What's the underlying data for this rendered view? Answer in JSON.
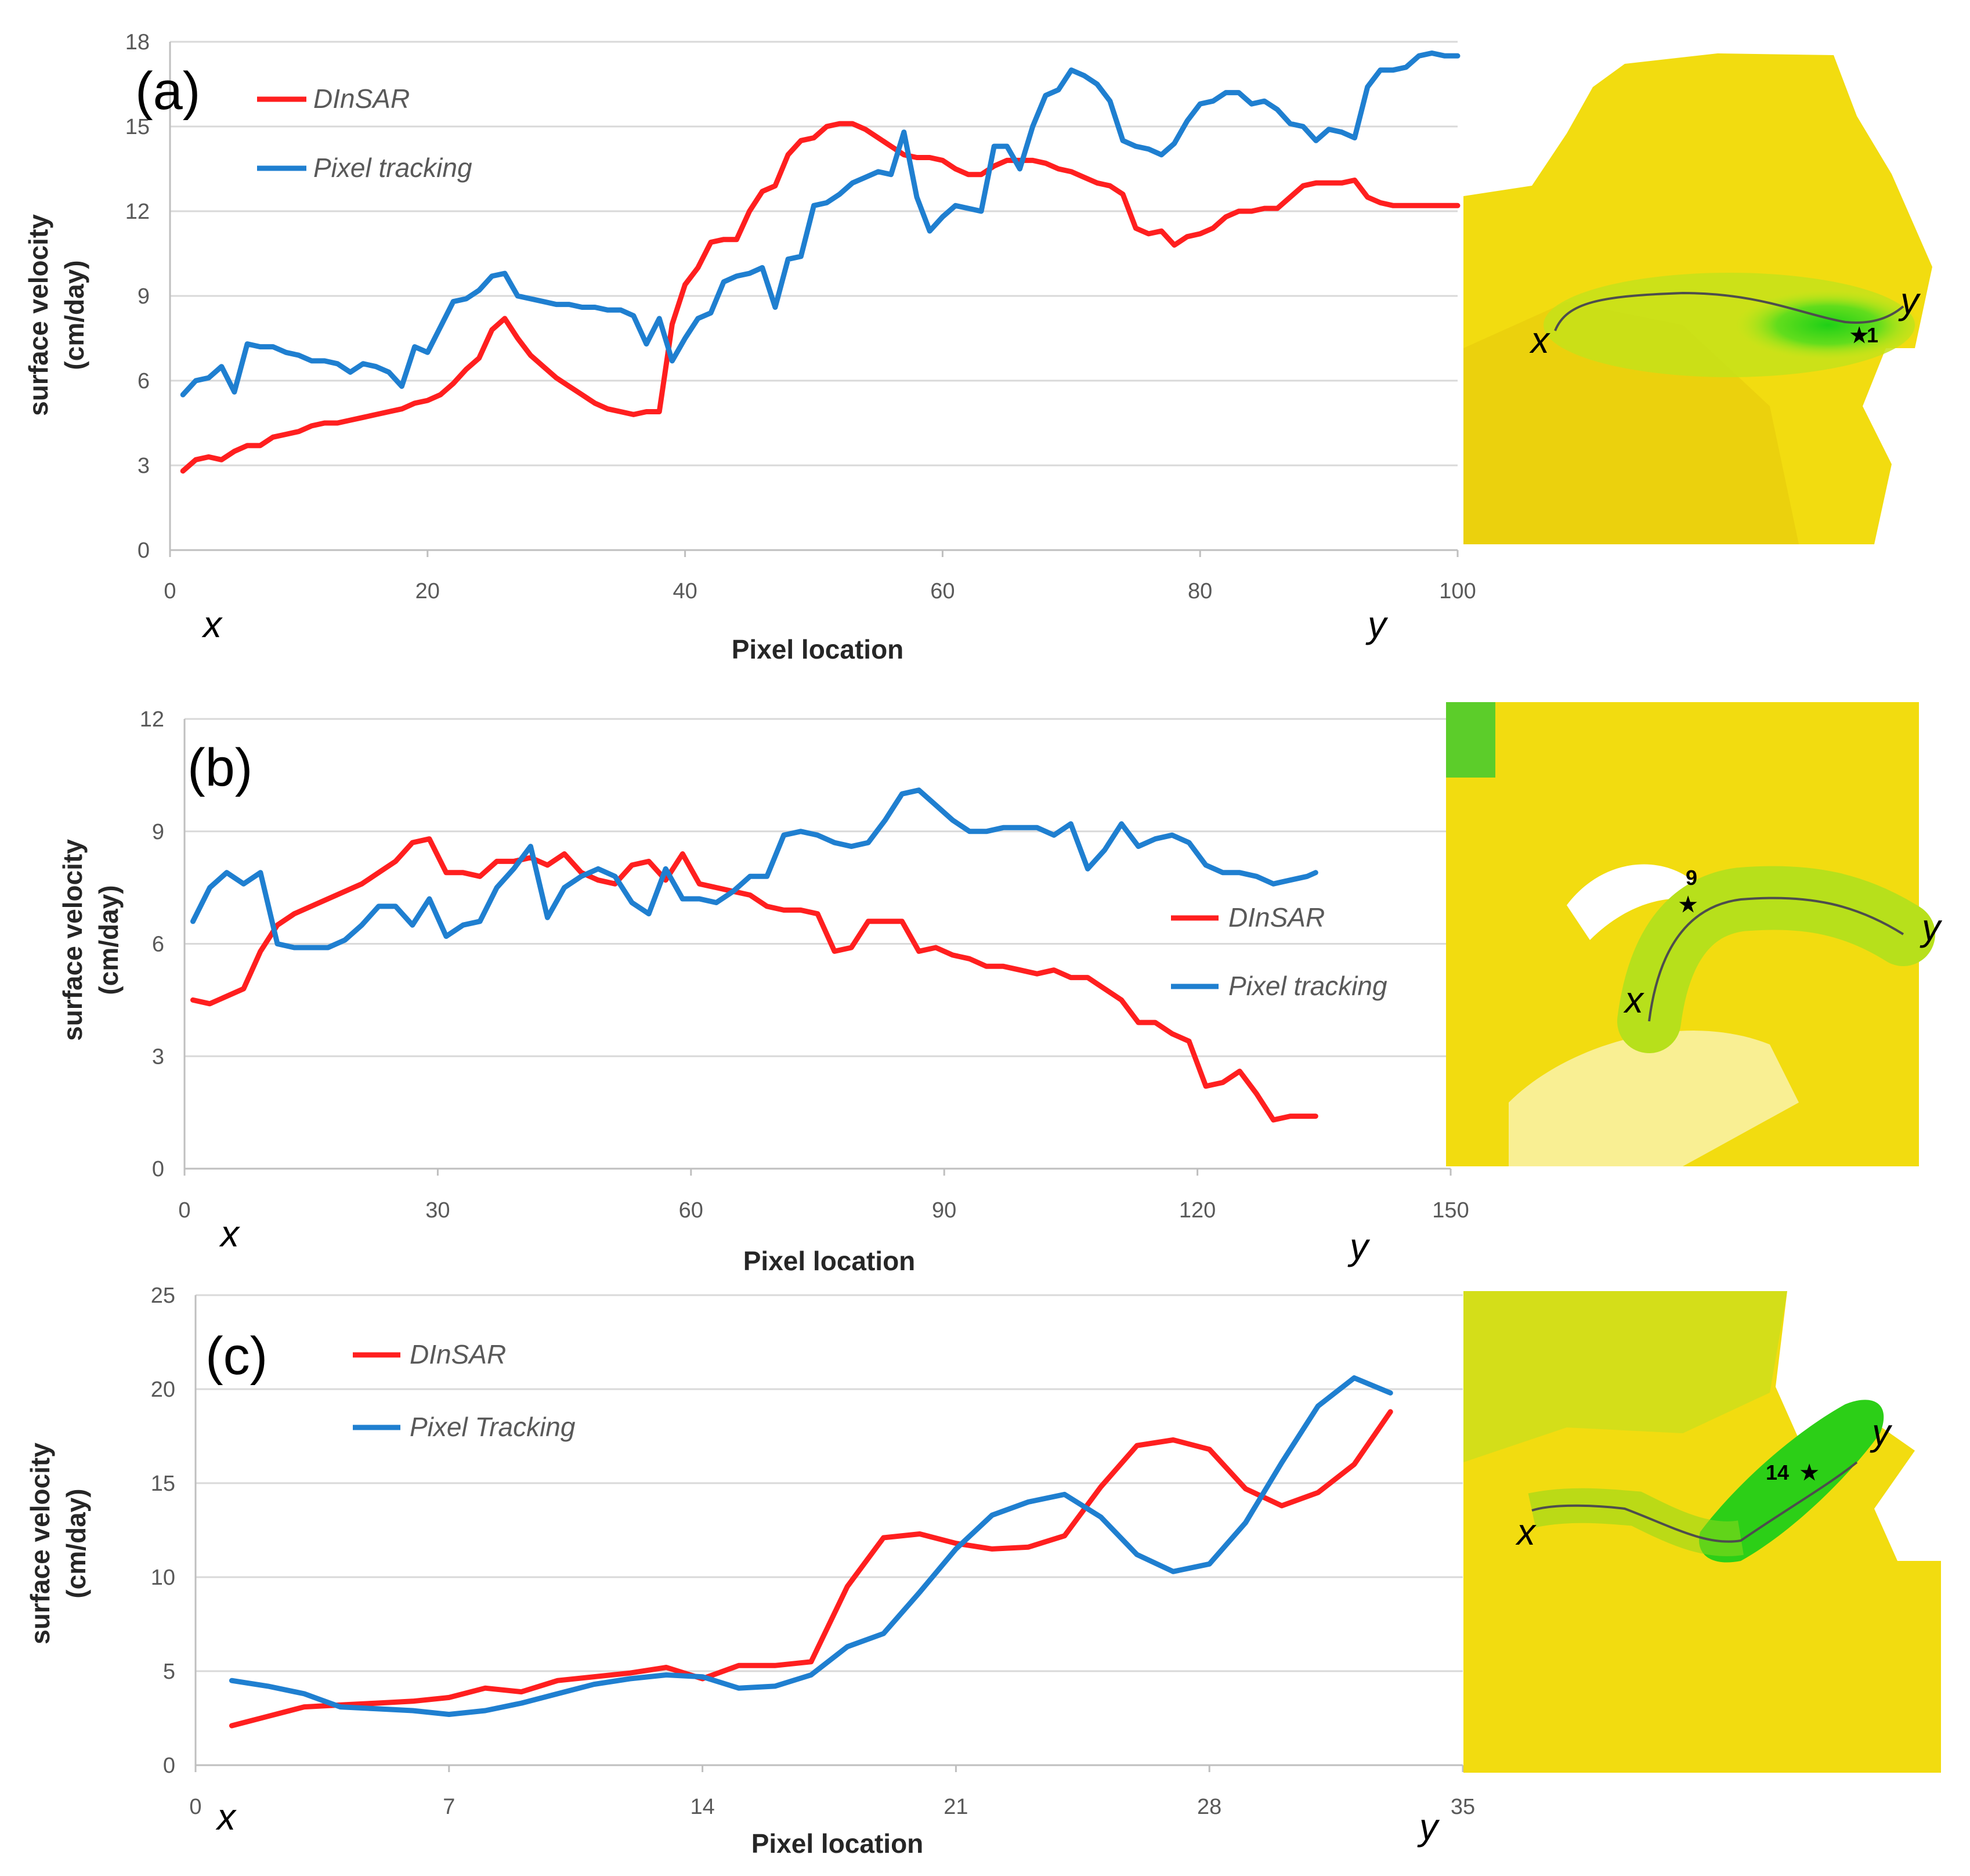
{
  "colors": {
    "dinsar": "#ff1f1f",
    "pixel_tracking": "#1f7fd0",
    "grid": "#d9d9d9",
    "axis": "#bfbfbf",
    "map_yellow": "#f2dc10",
    "map_green": "#29d316"
  },
  "chart_data": [
    {
      "type": "line",
      "panel_label": "(a)",
      "ylabel": "surface velocity\n(cm/day)",
      "xlabel": "Pixel location",
      "xlim": [
        0,
        100
      ],
      "ylim": [
        0,
        18
      ],
      "xticks": [
        0,
        20,
        40,
        60,
        80,
        100
      ],
      "yticks": [
        0,
        3,
        6,
        9,
        12,
        15,
        18
      ],
      "start_label": "x",
      "end_label": "y",
      "legend": {
        "position": "top-left"
      },
      "map": {
        "start_label": "x",
        "end_label": "y",
        "point_label": "1"
      },
      "series": [
        {
          "name": "DInSAR",
          "color": "#ff1f1f",
          "x": [
            1,
            2,
            3,
            4,
            5,
            6,
            7,
            8,
            9,
            10,
            11,
            12,
            13,
            14,
            15,
            16,
            17,
            18,
            19,
            20,
            21,
            22,
            23,
            24,
            25,
            26,
            27,
            28,
            29,
            30,
            31,
            32,
            33,
            34,
            35,
            36,
            37,
            38,
            39,
            40,
            41,
            42,
            43,
            44,
            45,
            46,
            47,
            48,
            49,
            50,
            51,
            52,
            53,
            54,
            55,
            56,
            57,
            58,
            59,
            60,
            61,
            62,
            63,
            64,
            65,
            66,
            67,
            68,
            69,
            70,
            71,
            72,
            73,
            74,
            75,
            76,
            77,
            78,
            79,
            80,
            81,
            82,
            83,
            84,
            85,
            86,
            87,
            88,
            89,
            90,
            91,
            92,
            93,
            94,
            95,
            96,
            97,
            98,
            99,
            100
          ],
          "y": [
            2.8,
            3.2,
            3.3,
            3.2,
            3.5,
            3.7,
            3.7,
            4.0,
            4.1,
            4.2,
            4.4,
            4.5,
            4.5,
            4.6,
            4.7,
            4.8,
            4.9,
            5.0,
            5.2,
            5.3,
            5.5,
            5.9,
            6.4,
            6.8,
            7.8,
            8.2,
            7.5,
            6.9,
            6.5,
            6.1,
            5.8,
            5.5,
            5.2,
            5.0,
            4.9,
            4.8,
            4.9,
            4.9,
            8.0,
            9.4,
            10.0,
            10.9,
            11.0,
            11.0,
            12.0,
            12.7,
            12.9,
            14.0,
            14.5,
            14.6,
            15.0,
            15.1,
            15.1,
            14.9,
            14.6,
            14.3,
            14.0,
            13.9,
            13.9,
            13.8,
            13.5,
            13.3,
            13.3,
            13.6,
            13.8,
            13.8,
            13.8,
            13.7,
            13.5,
            13.4,
            13.2,
            13.0,
            12.9,
            12.6,
            11.4,
            11.2,
            11.3,
            10.8,
            11.1,
            11.2,
            11.4,
            11.8,
            12.0,
            12.0,
            12.1,
            12.1,
            12.5,
            12.9,
            13.0,
            13.0,
            13.0,
            13.1,
            12.5,
            12.3,
            12.2,
            12.2,
            12.2,
            12.2,
            12.2,
            12.2
          ]
        },
        {
          "name": "Pixel tracking",
          "color": "#1f7fd0",
          "x": [
            1,
            2,
            3,
            4,
            5,
            6,
            7,
            8,
            9,
            10,
            11,
            12,
            13,
            14,
            15,
            16,
            17,
            18,
            19,
            20,
            21,
            22,
            23,
            24,
            25,
            26,
            27,
            28,
            29,
            30,
            31,
            32,
            33,
            34,
            35,
            36,
            37,
            38,
            39,
            40,
            41,
            42,
            43,
            44,
            45,
            46,
            47,
            48,
            49,
            50,
            51,
            52,
            53,
            54,
            55,
            56,
            57,
            58,
            59,
            60,
            61,
            62,
            63,
            64,
            65,
            66,
            67,
            68,
            69,
            70,
            71,
            72,
            73,
            74,
            75,
            76,
            77,
            78,
            79,
            80,
            81,
            82,
            83,
            84,
            85,
            86,
            87,
            88,
            89,
            90,
            91,
            92,
            93,
            94,
            95,
            96,
            97,
            98,
            99,
            100
          ],
          "y": [
            5.5,
            6.0,
            6.1,
            6.5,
            5.6,
            7.3,
            7.2,
            7.2,
            7.0,
            6.9,
            6.7,
            6.7,
            6.6,
            6.3,
            6.6,
            6.5,
            6.3,
            5.8,
            7.2,
            7.0,
            7.9,
            8.8,
            8.9,
            9.2,
            9.7,
            9.8,
            9.0,
            8.9,
            8.8,
            8.7,
            8.7,
            8.6,
            8.6,
            8.5,
            8.5,
            8.3,
            7.3,
            8.2,
            6.7,
            7.5,
            8.2,
            8.4,
            9.5,
            9.7,
            9.8,
            10.0,
            8.6,
            10.3,
            10.4,
            12.2,
            12.3,
            12.6,
            13.0,
            13.2,
            13.4,
            13.3,
            14.8,
            12.5,
            11.3,
            11.8,
            12.2,
            12.1,
            12.0,
            14.3,
            14.3,
            13.5,
            15.0,
            16.1,
            16.3,
            17.0,
            16.8,
            16.5,
            15.9,
            14.5,
            14.3,
            14.2,
            14.0,
            14.4,
            15.2,
            15.8,
            15.9,
            16.2,
            16.2,
            15.8,
            15.9,
            15.6,
            15.1,
            15.0,
            14.5,
            14.9,
            14.8,
            14.6,
            16.4,
            17.0,
            17.0,
            17.1,
            17.5,
            17.6,
            17.5,
            17.5
          ]
        }
      ]
    },
    {
      "type": "line",
      "panel_label": "(b)",
      "ylabel": "surface velocity\n(cm/day)",
      "xlabel": "Pixel location",
      "xlim": [
        0,
        150
      ],
      "ylim": [
        0,
        12
      ],
      "xticks": [
        0,
        30,
        60,
        90,
        120,
        150
      ],
      "yticks": [
        0,
        3,
        6,
        9,
        12
      ],
      "start_label": "x",
      "end_label": "y",
      "legend": {
        "position": "right"
      },
      "map": {
        "start_label": "x",
        "end_label": "y",
        "point_label": "9"
      },
      "series": [
        {
          "name": "DInSAR",
          "color": "#ff1f1f",
          "x": [
            1,
            3,
            5,
            7,
            9,
            11,
            13,
            15,
            17,
            19,
            21,
            23,
            25,
            27,
            29,
            31,
            33,
            35,
            37,
            39,
            41,
            43,
            45,
            47,
            49,
            51,
            53,
            55,
            57,
            59,
            61,
            63,
            65,
            67,
            69,
            71,
            73,
            75,
            77,
            79,
            81,
            83,
            85,
            87,
            89,
            91,
            93,
            95,
            97,
            99,
            101,
            103,
            105,
            107,
            109,
            111,
            113,
            115,
            117,
            119,
            121,
            123,
            125,
            127,
            129,
            131,
            133,
            134
          ],
          "y": [
            4.5,
            4.4,
            4.6,
            4.8,
            5.8,
            6.5,
            6.8,
            7.0,
            7.2,
            7.4,
            7.6,
            7.9,
            8.2,
            8.7,
            8.8,
            7.9,
            7.9,
            7.8,
            8.2,
            8.2,
            8.3,
            8.1,
            8.4,
            7.9,
            7.7,
            7.6,
            8.1,
            8.2,
            7.7,
            8.4,
            7.6,
            7.5,
            7.4,
            7.3,
            7.0,
            6.9,
            6.9,
            6.8,
            5.8,
            5.9,
            6.6,
            6.6,
            6.6,
            5.8,
            5.9,
            5.7,
            5.6,
            5.4,
            5.4,
            5.3,
            5.2,
            5.3,
            5.1,
            5.1,
            4.8,
            4.5,
            3.9,
            3.9,
            3.6,
            3.4,
            2.2,
            2.3,
            2.6,
            2.0,
            1.3,
            1.4,
            1.4,
            1.4
          ]
        },
        {
          "name": "Pixel tracking",
          "color": "#1f7fd0",
          "x": [
            1,
            3,
            5,
            7,
            9,
            11,
            13,
            15,
            17,
            19,
            21,
            23,
            25,
            27,
            29,
            31,
            33,
            35,
            37,
            39,
            41,
            43,
            45,
            47,
            49,
            51,
            53,
            55,
            57,
            59,
            61,
            63,
            65,
            67,
            69,
            71,
            73,
            75,
            77,
            79,
            81,
            83,
            85,
            87,
            89,
            91,
            93,
            95,
            97,
            99,
            101,
            103,
            105,
            107,
            109,
            111,
            113,
            115,
            117,
            119,
            121,
            123,
            125,
            127,
            129,
            131,
            133,
            134
          ],
          "y": [
            6.6,
            7.5,
            7.9,
            7.6,
            7.9,
            6.0,
            5.9,
            5.9,
            5.9,
            6.1,
            6.5,
            7.0,
            7.0,
            6.5,
            7.2,
            6.2,
            6.5,
            6.6,
            7.5,
            8.0,
            8.6,
            6.7,
            7.5,
            7.8,
            8.0,
            7.8,
            7.1,
            6.8,
            8.0,
            7.2,
            7.2,
            7.1,
            7.4,
            7.8,
            7.8,
            8.9,
            9.0,
            8.9,
            8.7,
            8.6,
            8.7,
            9.3,
            10.0,
            10.1,
            9.7,
            9.3,
            9.0,
            9.0,
            9.1,
            9.1,
            9.1,
            8.9,
            9.2,
            8.0,
            8.5,
            9.2,
            8.6,
            8.8,
            8.9,
            8.7,
            8.1,
            7.9,
            7.9,
            7.8,
            7.6,
            7.7,
            7.8,
            7.9
          ]
        }
      ]
    },
    {
      "type": "line",
      "panel_label": "(c)",
      "ylabel": "surface velocity\n(cm/day)",
      "xlabel": "Pixel location",
      "xlim": [
        0,
        35
      ],
      "ylim": [
        0,
        25
      ],
      "xticks": [
        0,
        7,
        14,
        21,
        28,
        35
      ],
      "yticks": [
        0,
        5,
        10,
        15,
        20,
        25
      ],
      "start_label": "x",
      "end_label": "y",
      "legend": {
        "position": "top-left"
      },
      "map": {
        "start_label": "x",
        "end_label": "y",
        "point_label": "14"
      },
      "series": [
        {
          "name": "DInSAR",
          "color": "#ff1f1f",
          "x": [
            1,
            2,
            3,
            4,
            5,
            6,
            7,
            8,
            9,
            10,
            11,
            12,
            13,
            14,
            15,
            16,
            17,
            18,
            19,
            20,
            21,
            22,
            23,
            24,
            25,
            26,
            27,
            28,
            29,
            30,
            31,
            32,
            33
          ],
          "y": [
            2.1,
            2.6,
            3.1,
            3.2,
            3.3,
            3.4,
            3.6,
            4.1,
            3.9,
            4.5,
            4.7,
            4.9,
            5.2,
            4.6,
            5.3,
            5.3,
            5.5,
            9.5,
            12.1,
            12.3,
            11.8,
            11.5,
            11.6,
            12.2,
            14.8,
            17.0,
            17.3,
            16.8,
            14.7,
            13.8,
            14.5,
            16.0,
            18.8
          ]
        },
        {
          "name": "Pixel Tracking",
          "color": "#1f7fd0",
          "x": [
            1,
            2,
            3,
            4,
            5,
            6,
            7,
            8,
            9,
            10,
            11,
            12,
            13,
            14,
            15,
            16,
            17,
            18,
            19,
            20,
            21,
            22,
            23,
            24,
            25,
            26,
            27,
            28,
            29,
            30,
            31,
            32,
            33
          ],
          "y": [
            4.5,
            4.2,
            3.8,
            3.1,
            3.0,
            2.9,
            2.7,
            2.9,
            3.3,
            3.8,
            4.3,
            4.6,
            4.8,
            4.7,
            4.1,
            4.2,
            4.8,
            6.3,
            7.0,
            9.2,
            11.5,
            13.3,
            14.0,
            14.4,
            13.2,
            11.2,
            10.3,
            10.7,
            12.9,
            16.1,
            19.1,
            20.6,
            19.8
          ]
        }
      ]
    }
  ]
}
